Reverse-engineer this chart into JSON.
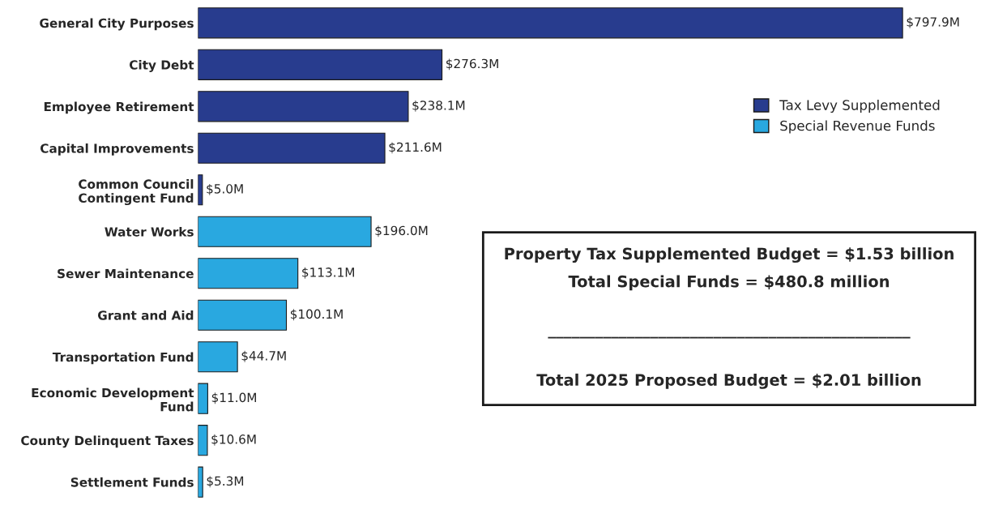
{
  "chart_data": {
    "type": "bar",
    "orientation": "horizontal",
    "categories": [
      "General City Purposes",
      "City Debt",
      "Employee Retirement",
      "Capital Improvements",
      "Common Council\nContingent Fund",
      "Water Works",
      "Sewer Maintenance",
      "Grant and Aid",
      "Transportation Fund",
      "Economic Development\nFund",
      "County Delinquent Taxes",
      "Settlement Funds"
    ],
    "series": [
      {
        "name": "Tax Levy Supplemented",
        "color": "#283c8e",
        "values": [
          797.9,
          276.3,
          238.1,
          211.6,
          5.0,
          null,
          null,
          null,
          null,
          null,
          null,
          null
        ],
        "value_labels": [
          "$797.9M",
          "$276.3M",
          "$238.1M",
          "$211.6M",
          "$5.0M",
          null,
          null,
          null,
          null,
          null,
          null,
          null
        ]
      },
      {
        "name": "Special Revenue Funds",
        "color": "#29a8e0",
        "values": [
          null,
          null,
          null,
          null,
          null,
          196.0,
          113.1,
          100.1,
          44.7,
          11.0,
          10.6,
          5.3
        ],
        "value_labels": [
          null,
          null,
          null,
          null,
          null,
          "$196.0M",
          "$113.1M",
          "$100.1M",
          "$44.7M",
          "$11.0M",
          "$10.6M",
          "$5.3M"
        ]
      }
    ],
    "legend": "top right",
    "tick_labels": "y",
    "grid": false,
    "annotations": [
      "Property Tax Supplemented Budget = $1.53 billion",
      "Total Special Funds = $480.8 million",
      "______________________________________________",
      "Total 2025 Proposed Budget = $2.01 billion"
    ]
  }
}
